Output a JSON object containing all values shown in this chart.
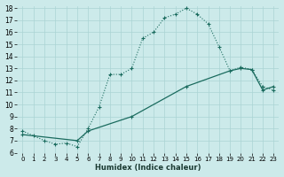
{
  "xlabel": "Humidex (Indice chaleur)",
  "background_color": "#cceaea",
  "grid_color": "#aad4d4",
  "line_color": "#1a6b5e",
  "xlim": [
    -0.5,
    23.5
  ],
  "ylim": [
    6,
    18.2
  ],
  "yticks": [
    6,
    7,
    8,
    9,
    10,
    11,
    12,
    13,
    14,
    15,
    16,
    17,
    18
  ],
  "xticks": [
    0,
    1,
    2,
    3,
    4,
    5,
    6,
    7,
    8,
    9,
    10,
    11,
    12,
    13,
    14,
    15,
    16,
    17,
    18,
    19,
    20,
    21,
    22,
    23
  ],
  "series1_x": [
    0,
    1,
    2,
    3,
    4,
    5,
    6,
    7,
    8,
    9,
    10,
    11,
    12,
    13,
    14,
    15,
    16,
    17,
    18,
    19,
    20,
    21,
    22,
    23
  ],
  "series1_y": [
    7.8,
    7.4,
    7.0,
    6.7,
    6.8,
    6.5,
    8.0,
    9.8,
    12.5,
    12.5,
    13.0,
    15.5,
    16.0,
    17.2,
    17.5,
    18.0,
    17.5,
    16.7,
    14.8,
    12.8,
    13.1,
    12.9,
    11.5,
    11.2
  ],
  "series2_x": [
    0,
    5,
    6,
    10,
    15,
    19,
    20,
    21,
    22,
    23
  ],
  "series2_y": [
    7.5,
    7.0,
    7.8,
    9.0,
    11.5,
    12.8,
    13.0,
    12.9,
    11.2,
    11.5
  ]
}
